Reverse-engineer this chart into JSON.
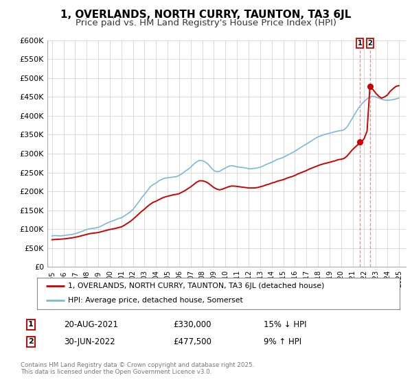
{
  "title": "1, OVERLANDS, NORTH CURRY, TAUNTON, TA3 6JL",
  "subtitle": "Price paid vs. HM Land Registry's House Price Index (HPI)",
  "ylim": [
    0,
    600000
  ],
  "yticks": [
    0,
    50000,
    100000,
    150000,
    200000,
    250000,
    300000,
    350000,
    400000,
    450000,
    500000,
    550000,
    600000
  ],
  "ytick_labels": [
    "£0",
    "£50K",
    "£100K",
    "£150K",
    "£200K",
    "£250K",
    "£300K",
    "£350K",
    "£400K",
    "£450K",
    "£500K",
    "£550K",
    "£600K"
  ],
  "xlim_start": 1994.6,
  "xlim_end": 2025.6,
  "xticks": [
    1995,
    1996,
    1997,
    1998,
    1999,
    2000,
    2001,
    2002,
    2003,
    2004,
    2005,
    2006,
    2007,
    2008,
    2009,
    2010,
    2011,
    2012,
    2013,
    2014,
    2015,
    2016,
    2017,
    2018,
    2019,
    2020,
    2021,
    2022,
    2023,
    2024,
    2025
  ],
  "xtick_labels": [
    "1995",
    "1996",
    "1997",
    "1998",
    "1999",
    "2000",
    "2001",
    "2002",
    "2003",
    "2004",
    "2005",
    "2006",
    "2007",
    "2008",
    "2009",
    "2010",
    "2011",
    "2012",
    "2013",
    "2014",
    "2015",
    "2016",
    "2017",
    "2018",
    "2019",
    "2020",
    "2021",
    "2022",
    "2023",
    "2024",
    "2025"
  ],
  "hpi_color": "#7ab8d9",
  "price_color": "#cc0000",
  "vline_color": "#cc0000",
  "vline_alpha": 0.45,
  "transaction1_x": 2021.635,
  "transaction1_y": 330000,
  "transaction2_x": 2022.496,
  "transaction2_y": 477500,
  "legend_label1": "1, OVERLANDS, NORTH CURRY, TAUNTON, TA3 6JL (detached house)",
  "legend_label2": "HPI: Average price, detached house, Somerset",
  "annotation1_num": "1",
  "annotation1_date": "20-AUG-2021",
  "annotation1_price": "£330,000",
  "annotation1_pct": "15% ↓ HPI",
  "annotation2_num": "2",
  "annotation2_date": "30-JUN-2022",
  "annotation2_price": "£477,500",
  "annotation2_pct": "9% ↑ HPI",
  "footer": "Contains HM Land Registry data © Crown copyright and database right 2025.\nThis data is licensed under the Open Government Licence v3.0.",
  "background_color": "#ffffff",
  "grid_color": "#cccccc",
  "title_fontsize": 11,
  "subtitle_fontsize": 9.5,
  "hpi_data": [
    [
      1995.0,
      82000
    ],
    [
      1995.25,
      83000
    ],
    [
      1995.5,
      82500
    ],
    [
      1995.75,
      82000
    ],
    [
      1996.0,
      83000
    ],
    [
      1996.25,
      84000
    ],
    [
      1996.5,
      85000
    ],
    [
      1996.75,
      86000
    ],
    [
      1997.0,
      88000
    ],
    [
      1997.25,
      90000
    ],
    [
      1997.5,
      93000
    ],
    [
      1997.75,
      96000
    ],
    [
      1998.0,
      99000
    ],
    [
      1998.25,
      101000
    ],
    [
      1998.5,
      102000
    ],
    [
      1998.75,
      103000
    ],
    [
      1999.0,
      105000
    ],
    [
      1999.25,
      108000
    ],
    [
      1999.5,
      112000
    ],
    [
      1999.75,
      116000
    ],
    [
      2000.0,
      119000
    ],
    [
      2000.25,
      122000
    ],
    [
      2000.5,
      125000
    ],
    [
      2000.75,
      128000
    ],
    [
      2001.0,
      130000
    ],
    [
      2001.25,
      135000
    ],
    [
      2001.5,
      140000
    ],
    [
      2001.75,
      145000
    ],
    [
      2002.0,
      152000
    ],
    [
      2002.25,
      162000
    ],
    [
      2002.5,
      172000
    ],
    [
      2002.75,
      183000
    ],
    [
      2003.0,
      192000
    ],
    [
      2003.25,
      202000
    ],
    [
      2003.5,
      212000
    ],
    [
      2003.75,
      218000
    ],
    [
      2004.0,
      222000
    ],
    [
      2004.25,
      228000
    ],
    [
      2004.5,
      232000
    ],
    [
      2004.75,
      235000
    ],
    [
      2005.0,
      236000
    ],
    [
      2005.25,
      237000
    ],
    [
      2005.5,
      238000
    ],
    [
      2005.75,
      239000
    ],
    [
      2006.0,
      242000
    ],
    [
      2006.25,
      247000
    ],
    [
      2006.5,
      253000
    ],
    [
      2006.75,
      258000
    ],
    [
      2007.0,
      264000
    ],
    [
      2007.25,
      272000
    ],
    [
      2007.5,
      278000
    ],
    [
      2007.75,
      282000
    ],
    [
      2008.0,
      281000
    ],
    [
      2008.25,
      278000
    ],
    [
      2008.5,
      272000
    ],
    [
      2008.75,
      263000
    ],
    [
      2009.0,
      255000
    ],
    [
      2009.25,
      252000
    ],
    [
      2009.5,
      253000
    ],
    [
      2009.75,
      258000
    ],
    [
      2010.0,
      262000
    ],
    [
      2010.25,
      266000
    ],
    [
      2010.5,
      268000
    ],
    [
      2010.75,
      267000
    ],
    [
      2011.0,
      265000
    ],
    [
      2011.25,
      264000
    ],
    [
      2011.5,
      263000
    ],
    [
      2011.75,
      262000
    ],
    [
      2012.0,
      260000
    ],
    [
      2012.25,
      260000
    ],
    [
      2012.5,
      261000
    ],
    [
      2012.75,
      262000
    ],
    [
      2013.0,
      264000
    ],
    [
      2013.25,
      267000
    ],
    [
      2013.5,
      271000
    ],
    [
      2013.75,
      274000
    ],
    [
      2014.0,
      277000
    ],
    [
      2014.25,
      281000
    ],
    [
      2014.5,
      285000
    ],
    [
      2014.75,
      287000
    ],
    [
      2015.0,
      290000
    ],
    [
      2015.25,
      294000
    ],
    [
      2015.5,
      298000
    ],
    [
      2015.75,
      302000
    ],
    [
      2016.0,
      306000
    ],
    [
      2016.25,
      311000
    ],
    [
      2016.5,
      316000
    ],
    [
      2016.75,
      321000
    ],
    [
      2017.0,
      325000
    ],
    [
      2017.25,
      330000
    ],
    [
      2017.5,
      335000
    ],
    [
      2017.75,
      340000
    ],
    [
      2018.0,
      344000
    ],
    [
      2018.25,
      347000
    ],
    [
      2018.5,
      350000
    ],
    [
      2018.75,
      352000
    ],
    [
      2019.0,
      354000
    ],
    [
      2019.25,
      356000
    ],
    [
      2019.5,
      358000
    ],
    [
      2019.75,
      360000
    ],
    [
      2020.0,
      361000
    ],
    [
      2020.25,
      363000
    ],
    [
      2020.5,
      370000
    ],
    [
      2020.75,
      382000
    ],
    [
      2021.0,
      395000
    ],
    [
      2021.25,
      408000
    ],
    [
      2021.5,
      420000
    ],
    [
      2021.75,
      430000
    ],
    [
      2022.0,
      438000
    ],
    [
      2022.25,
      445000
    ],
    [
      2022.5,
      450000
    ],
    [
      2022.75,
      452000
    ],
    [
      2023.0,
      450000
    ],
    [
      2023.25,
      447000
    ],
    [
      2023.5,
      444000
    ],
    [
      2023.75,
      442000
    ],
    [
      2024.0,
      441000
    ],
    [
      2024.25,
      442000
    ],
    [
      2024.5,
      443000
    ],
    [
      2024.75,
      445000
    ],
    [
      2025.0,
      447000
    ]
  ],
  "price_data": [
    [
      1995.0,
      72000
    ],
    [
      1995.25,
      72500
    ],
    [
      1995.5,
      73000
    ],
    [
      1995.75,
      73500
    ],
    [
      1996.0,
      74000
    ],
    [
      1996.25,
      75000
    ],
    [
      1996.5,
      76000
    ],
    [
      1996.75,
      77000
    ],
    [
      1997.0,
      78500
    ],
    [
      1997.25,
      80000
    ],
    [
      1997.5,
      82000
    ],
    [
      1997.75,
      84000
    ],
    [
      1998.0,
      86000
    ],
    [
      1998.25,
      88000
    ],
    [
      1998.5,
      89000
    ],
    [
      1998.75,
      90000
    ],
    [
      1999.0,
      91000
    ],
    [
      1999.25,
      93000
    ],
    [
      1999.5,
      95000
    ],
    [
      1999.75,
      97000
    ],
    [
      2000.0,
      99000
    ],
    [
      2000.25,
      100500
    ],
    [
      2000.5,
      102000
    ],
    [
      2000.75,
      104000
    ],
    [
      2001.0,
      106000
    ],
    [
      2001.25,
      110000
    ],
    [
      2001.5,
      115000
    ],
    [
      2001.75,
      120000
    ],
    [
      2002.0,
      126000
    ],
    [
      2002.25,
      133000
    ],
    [
      2002.5,
      140000
    ],
    [
      2002.75,
      147000
    ],
    [
      2003.0,
      153000
    ],
    [
      2003.25,
      160000
    ],
    [
      2003.5,
      166000
    ],
    [
      2003.75,
      171000
    ],
    [
      2004.0,
      174000
    ],
    [
      2004.25,
      178000
    ],
    [
      2004.5,
      182000
    ],
    [
      2004.75,
      185000
    ],
    [
      2005.0,
      187000
    ],
    [
      2005.25,
      189000
    ],
    [
      2005.5,
      191000
    ],
    [
      2005.75,
      192000
    ],
    [
      2006.0,
      194000
    ],
    [
      2006.25,
      198000
    ],
    [
      2006.5,
      202000
    ],
    [
      2006.75,
      207000
    ],
    [
      2007.0,
      212000
    ],
    [
      2007.25,
      218000
    ],
    [
      2007.5,
      224000
    ],
    [
      2007.75,
      228000
    ],
    [
      2008.0,
      228000
    ],
    [
      2008.25,
      226000
    ],
    [
      2008.5,
      222000
    ],
    [
      2008.75,
      216000
    ],
    [
      2009.0,
      210000
    ],
    [
      2009.25,
      206000
    ],
    [
      2009.5,
      204000
    ],
    [
      2009.75,
      206000
    ],
    [
      2010.0,
      209000
    ],
    [
      2010.25,
      212000
    ],
    [
      2010.5,
      214000
    ],
    [
      2010.75,
      214000
    ],
    [
      2011.0,
      213000
    ],
    [
      2011.25,
      212000
    ],
    [
      2011.5,
      211000
    ],
    [
      2011.75,
      210000
    ],
    [
      2012.0,
      209000
    ],
    [
      2012.25,
      209000
    ],
    [
      2012.5,
      209000
    ],
    [
      2012.75,
      210000
    ],
    [
      2013.0,
      212000
    ],
    [
      2013.25,
      214000
    ],
    [
      2013.5,
      217000
    ],
    [
      2013.75,
      219000
    ],
    [
      2014.0,
      222000
    ],
    [
      2014.25,
      224000
    ],
    [
      2014.5,
      227000
    ],
    [
      2014.75,
      229000
    ],
    [
      2015.0,
      231000
    ],
    [
      2015.25,
      234000
    ],
    [
      2015.5,
      237000
    ],
    [
      2015.75,
      239000
    ],
    [
      2016.0,
      242000
    ],
    [
      2016.25,
      246000
    ],
    [
      2016.5,
      249000
    ],
    [
      2016.75,
      252000
    ],
    [
      2017.0,
      255000
    ],
    [
      2017.25,
      259000
    ],
    [
      2017.5,
      262000
    ],
    [
      2017.75,
      265000
    ],
    [
      2018.0,
      268000
    ],
    [
      2018.25,
      271000
    ],
    [
      2018.5,
      273000
    ],
    [
      2018.75,
      275000
    ],
    [
      2019.0,
      277000
    ],
    [
      2019.25,
      279000
    ],
    [
      2019.5,
      281000
    ],
    [
      2019.75,
      284000
    ],
    [
      2020.0,
      285000
    ],
    [
      2020.25,
      287000
    ],
    [
      2020.5,
      293000
    ],
    [
      2020.75,
      302000
    ],
    [
      2021.0,
      311000
    ],
    [
      2021.25,
      318000
    ],
    [
      2021.5,
      325000
    ],
    [
      2021.635,
      330000
    ],
    [
      2021.75,
      331000
    ],
    [
      2022.0,
      340000
    ],
    [
      2022.25,
      360000
    ],
    [
      2022.496,
      477500
    ],
    [
      2022.5,
      475000
    ],
    [
      2022.75,
      470000
    ],
    [
      2023.0,
      460000
    ],
    [
      2023.25,
      452000
    ],
    [
      2023.5,
      447000
    ],
    [
      2023.75,
      450000
    ],
    [
      2024.0,
      455000
    ],
    [
      2024.25,
      465000
    ],
    [
      2024.5,
      472000
    ],
    [
      2024.75,
      478000
    ],
    [
      2025.0,
      480000
    ]
  ]
}
